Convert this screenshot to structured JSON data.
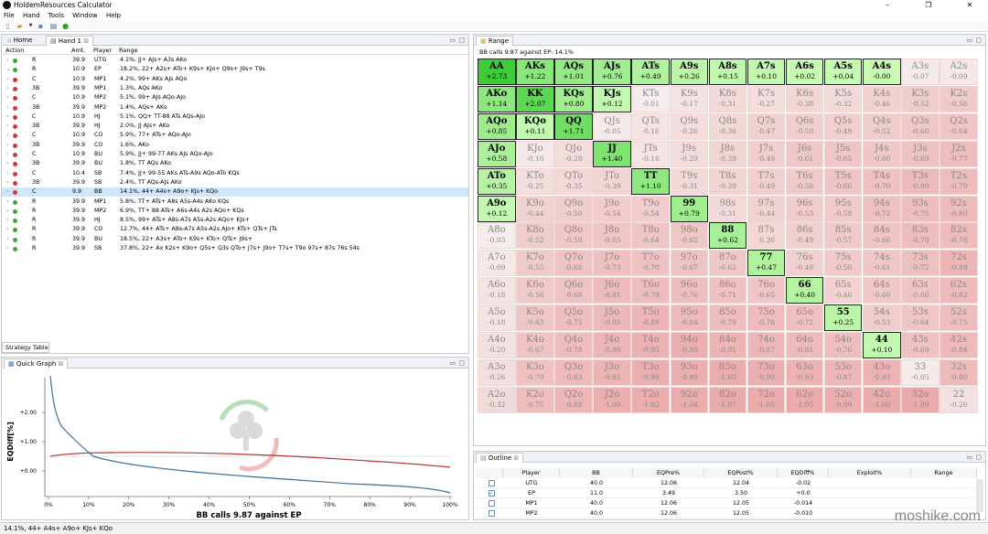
{
  "title": "HoldemResources Calculator",
  "menu": [
    "File",
    "Hand",
    "Tools",
    "Window",
    "Help"
  ],
  "tabs": {
    "home": "Home",
    "hand": "Hand 1"
  },
  "action_headers": {
    "action": "Action",
    "amt": "Amt.",
    "player": "Player",
    "range": "Range"
  },
  "actions": [
    {
      "dot": "g",
      "act": "R",
      "amt": "39.9",
      "player": "UTG",
      "range": "4.1%, JJ+ AJs+ A3s AKo"
    },
    {
      "dot": "g",
      "act": "R",
      "amt": "10.9",
      "player": "EP",
      "range": "18.2%, 22+ A2s+ ATo+ K9s+ KJo+ Q9s+ J9s+ T9s",
      "open": true
    },
    {
      "dot": "r",
      "act": "C",
      "amt": "10.9",
      "player": "MP1",
      "range": "4.2%, 99+ AKs AJs AQo"
    },
    {
      "dot": "r",
      "act": "3B",
      "amt": "39.9",
      "player": "MP1",
      "range": "1.3%, AQs AKo"
    },
    {
      "dot": "r",
      "act": "C",
      "amt": "10.9",
      "player": "MP2",
      "range": "5.1%, 99+ AJs AQo-AJo"
    },
    {
      "dot": "r",
      "act": "3B",
      "amt": "39.9",
      "player": "MP2",
      "range": "1.4%, AQs+ AKo"
    },
    {
      "dot": "r",
      "act": "C",
      "amt": "10.9",
      "player": "HJ",
      "range": "5.1%, QQ+ TT-88 ATs AQs-AJo"
    },
    {
      "dot": "r",
      "act": "3B",
      "amt": "39.9",
      "player": "HJ",
      "range": "2.0%, JJ AJs+ AKo"
    },
    {
      "dot": "r",
      "act": "C",
      "amt": "10.9",
      "player": "CO",
      "range": "5.9%, 77+ ATs+ AQo-AJo"
    },
    {
      "dot": "r",
      "act": "3B",
      "amt": "39.9",
      "player": "CO",
      "range": "1.6%, AKo"
    },
    {
      "dot": "r",
      "act": "C",
      "amt": "10.9",
      "player": "BU",
      "range": "5.9%, JJ+ 99-77 AKs AJs AQo-AJo"
    },
    {
      "dot": "r",
      "act": "3B",
      "amt": "39.9",
      "player": "BU",
      "range": "1.8%, TT AQs AKo"
    },
    {
      "dot": "r",
      "act": "C",
      "amt": "10.4",
      "player": "SB",
      "range": "7.4%, JJ+ 99-55 AKs ATs-A9s AQo-ATo KQs"
    },
    {
      "dot": "r",
      "act": "3B",
      "amt": "39.9",
      "player": "SB",
      "range": "2.4%, TT AQs-AJs AKo"
    },
    {
      "dot": "r",
      "act": "C",
      "amt": "9.9",
      "player": "BB",
      "range": "14.1%, 44+ A4s+ A9o+ KJs+ KQo",
      "sel": true
    },
    {
      "dot": "g",
      "act": "R",
      "amt": "39.9",
      "player": "MP1",
      "range": "5.8%, TT+ ATs+ A8s A5s-A4s AKo KQs"
    },
    {
      "dot": "g",
      "act": "R",
      "amt": "39.9",
      "player": "MP2",
      "range": "6.9%, TT+ 88 ATs+ A6s-A4s A2s AQo+ KQs"
    },
    {
      "dot": "g",
      "act": "R",
      "amt": "39.9",
      "player": "HJ",
      "range": "8.5%, 99+ ATs+ A8s-A7s A5s-A2s AQo+ KJs+"
    },
    {
      "dot": "g",
      "act": "R",
      "amt": "39.9",
      "player": "CO",
      "range": "12.7%, 44+ ATs+ A8s-A7s A5s-A2s AJo+ KTs+ QTs+ JTs"
    },
    {
      "dot": "g",
      "act": "R",
      "amt": "39.9",
      "player": "BU",
      "range": "18.5%, 22+ A3s+ ATo+ K9s+ KTo+ QTs+ J9s+"
    },
    {
      "dot": "g",
      "act": "R",
      "amt": "39.9",
      "player": "SB",
      "range": "37.8%, 22+ Ax K2s+ K9o+ Q5s+ Q3s QTo+ J7s+ J9o+ T7s+ T9o 97s+ 87s 76s 54s"
    }
  ],
  "strategy_tab": "Strategy Table",
  "quick_graph": {
    "tab": "Quick Graph",
    "ylabel": "EQDiff[%]",
    "title": "BB calls 9.87 against EP",
    "yticks": [
      "+2.00",
      "+1.00",
      "+0.00",
      "-1.00"
    ],
    "xticks": [
      "0%",
      "10%",
      "20%",
      "30%",
      "40%",
      "50%",
      "60%",
      "70%",
      "80%",
      "90%",
      "100%"
    ]
  },
  "range_panel": {
    "tab": "Range",
    "info": "BB calls 9.87 against EP: 14.1%"
  },
  "grid": [
    [
      [
        "AA",
        "+2.73"
      ],
      [
        "AKs",
        "+1.22"
      ],
      [
        "AQs",
        "+1.01"
      ],
      [
        "AJs",
        "+0.76"
      ],
      [
        "ATs",
        "+0.49"
      ],
      [
        "A9s",
        "+0.26"
      ],
      [
        "A8s",
        "+0.15"
      ],
      [
        "A7s",
        "+0.10"
      ],
      [
        "A6s",
        "+0.02"
      ],
      [
        "A5s",
        "+0.04"
      ],
      [
        "A4s",
        "-0.00"
      ],
      [
        "A3s",
        "-0.07"
      ],
      [
        "A2s",
        "-0.09"
      ]
    ],
    [
      [
        "AKo",
        "+1.14"
      ],
      [
        "KK",
        "+2.07"
      ],
      [
        "KQs",
        "+0.80"
      ],
      [
        "KJs",
        "+0.12"
      ],
      [
        "KTs",
        "-0.01"
      ],
      [
        "K9s",
        "-0.17"
      ],
      [
        "K8s",
        "-0.31"
      ],
      [
        "K7s",
        "-0.27"
      ],
      [
        "K6s",
        "-0.38"
      ],
      [
        "K5s",
        "-0.32"
      ],
      [
        "K4s",
        "-0.46"
      ],
      [
        "K3s",
        "-0.52"
      ],
      [
        "K2s",
        "-0.56"
      ]
    ],
    [
      [
        "AQo",
        "+0.85"
      ],
      [
        "KQo",
        "+0.11"
      ],
      [
        "QQ",
        "+1.71"
      ],
      [
        "QJs",
        "-0.05"
      ],
      [
        "QTs",
        "-0.16"
      ],
      [
        "Q9s",
        "-0.26"
      ],
      [
        "Q8s",
        "-0.36"
      ],
      [
        "Q7s",
        "-0.47"
      ],
      [
        "Q6s",
        "-0.50"
      ],
      [
        "Q5s",
        "-0.49"
      ],
      [
        "Q4s",
        "-0.52"
      ],
      [
        "Q3s",
        "-0.60"
      ],
      [
        "Q2s",
        "-0.64"
      ]
    ],
    [
      [
        "AJo",
        "+0.58"
      ],
      [
        "KJo",
        "-0.10"
      ],
      [
        "QJo",
        "-0.28"
      ],
      [
        "JJ",
        "+1.40"
      ],
      [
        "JTs",
        "-0.16"
      ],
      [
        "J9s",
        "-0.29"
      ],
      [
        "J8s",
        "-0.39"
      ],
      [
        "J7s",
        "-0.49"
      ],
      [
        "J6s",
        "-0.61"
      ],
      [
        "J5s",
        "-0.65"
      ],
      [
        "J4s",
        "-0.60"
      ],
      [
        "J3s",
        "-0.69"
      ],
      [
        "J2s",
        "-0.77"
      ]
    ],
    [
      [
        "ATo",
        "+0.35"
      ],
      [
        "KTo",
        "-0.25"
      ],
      [
        "QTo",
        "-0.35"
      ],
      [
        "JTo",
        "-0.39"
      ],
      [
        "TT",
        "+1.10"
      ],
      [
        "T9s",
        "-0.31"
      ],
      [
        "T8s",
        "-0.39"
      ],
      [
        "T7s",
        "-0.49"
      ],
      [
        "T6s",
        "-0.58"
      ],
      [
        "T5s",
        "-0.66"
      ],
      [
        "T4s",
        "-0.70"
      ],
      [
        "T3s",
        "-0.80"
      ],
      [
        "T2s",
        "-0.79"
      ]
    ],
    [
      [
        "A9o",
        "+0.12"
      ],
      [
        "K9o",
        "-0.44"
      ],
      [
        "Q9o",
        "-0.50"
      ],
      [
        "J9o",
        "-0.54"
      ],
      [
        "T9o",
        "-0.54"
      ],
      [
        "99",
        "+0.79"
      ],
      [
        "98s",
        "-0.31"
      ],
      [
        "97s",
        "-0.44"
      ],
      [
        "96s",
        "-0.53"
      ],
      [
        "95s",
        "-0.58"
      ],
      [
        "94s",
        "-0.72"
      ],
      [
        "93s",
        "-0.75"
      ],
      [
        "92s",
        "-0.80"
      ]
    ],
    [
      [
        "A8o",
        "-0.03"
      ],
      [
        "K8o",
        "-0.52"
      ],
      [
        "Q8o",
        "-0.59"
      ],
      [
        "J8o",
        "-0.65"
      ],
      [
        "T8o",
        "-0.64"
      ],
      [
        "98o",
        "-0.62"
      ],
      [
        "88",
        "+0.62"
      ],
      [
        "87s",
        "-0.36"
      ],
      [
        "86s",
        "-0.49"
      ],
      [
        "85s",
        "-0.57"
      ],
      [
        "84s",
        "-0.66"
      ],
      [
        "83s",
        "-0.78"
      ],
      [
        "82s",
        "-0.78"
      ]
    ],
    [
      [
        "A7o",
        "-0.09"
      ],
      [
        "K7o",
        "-0.55"
      ],
      [
        "Q7o",
        "-0.68"
      ],
      [
        "J7o",
        "-0.73"
      ],
      [
        "T7o",
        "-0.70"
      ],
      [
        "97o",
        "-0.67"
      ],
      [
        "87o",
        "-0.62"
      ],
      [
        "77",
        "+0.47"
      ],
      [
        "76s",
        "-0.49"
      ],
      [
        "75s",
        "-0.56"
      ],
      [
        "74s",
        "-0.61"
      ],
      [
        "73s",
        "-0.72"
      ],
      [
        "72s",
        "-0.88"
      ]
    ],
    [
      [
        "A6o",
        "-0.18"
      ],
      [
        "K6o",
        "-0.56"
      ],
      [
        "Q6o",
        "-0.68"
      ],
      [
        "J6o",
        "-0.81"
      ],
      [
        "T6o",
        "-0.79"
      ],
      [
        "96o",
        "-0.76"
      ],
      [
        "86o",
        "-0.71"
      ],
      [
        "76o",
        "-0.65"
      ],
      [
        "66",
        "+0.40"
      ],
      [
        "65s",
        "-0.46"
      ],
      [
        "64s",
        "-0.60"
      ],
      [
        "63s",
        "-0.66"
      ],
      [
        "62s",
        "-0.82"
      ]
    ],
    [
      [
        "A5o",
        "-0.18"
      ],
      [
        "K5o",
        "-0.63"
      ],
      [
        "Q5o",
        "-0.75"
      ],
      [
        "J5o",
        "-0.85"
      ],
      [
        "T5o",
        "-0.89"
      ],
      [
        "95o",
        "-0.84"
      ],
      [
        "85o",
        "-0.79"
      ],
      [
        "75o",
        "-0.78"
      ],
      [
        "65o",
        "-0.72"
      ],
      [
        "55",
        "+0.25"
      ],
      [
        "54s",
        "-0.53"
      ],
      [
        "53s",
        "-0.64"
      ],
      [
        "52s",
        "-0.75"
      ]
    ],
    [
      [
        "A4o",
        "-0.20"
      ],
      [
        "K4o",
        "-0.67"
      ],
      [
        "Q4o",
        "-0.78"
      ],
      [
        "J4o",
        "-0.90"
      ],
      [
        "T4o",
        "-0.95"
      ],
      [
        "94o",
        "-0.99"
      ],
      [
        "84o",
        "-0.91"
      ],
      [
        "74o",
        "-0.87"
      ],
      [
        "64o",
        "-0.81"
      ],
      [
        "54o",
        "-0.76"
      ],
      [
        "44",
        "+0.10"
      ],
      [
        "43s",
        "-0.69"
      ],
      [
        "42s",
        "-0.84"
      ]
    ],
    [
      [
        "A3o",
        "-0.26"
      ],
      [
        "K3o",
        "-0.70"
      ],
      [
        "Q3o",
        "-0.83"
      ],
      [
        "J3o",
        "-0.91"
      ],
      [
        "T3o",
        "-0.99"
      ],
      [
        "93o",
        "-0.99"
      ],
      [
        "83o",
        "-1.03"
      ],
      [
        "73o",
        "-0.99"
      ],
      [
        "63o",
        "-0.93"
      ],
      [
        "53o",
        "-0.87"
      ],
      [
        "43o",
        "-0.93"
      ],
      [
        "33",
        "-0.05"
      ],
      [
        "32s",
        "-0.80"
      ]
    ],
    [
      [
        "A2o",
        "-0.32"
      ],
      [
        "K2o",
        "-0.75"
      ],
      [
        "Q2o",
        "-0.88"
      ],
      [
        "J2o",
        "-1.00"
      ],
      [
        "T2o",
        "-1.02"
      ],
      [
        "92o",
        "-1.04"
      ],
      [
        "82o",
        "-1.07"
      ],
      [
        "72o",
        "-1.05"
      ],
      [
        "62o",
        "-1.05"
      ],
      [
        "52o",
        "-0.99"
      ],
      [
        "42o",
        "-1.06"
      ],
      [
        "32o",
        "-1.09"
      ],
      [
        "22",
        "-0.20"
      ]
    ]
  ],
  "outline": {
    "tab": "Outline",
    "headers": [
      "Player",
      "BB",
      "EQPre%",
      "EQPost%",
      "EQDiff%",
      "Exploit%",
      "Range"
    ],
    "rows": [
      {
        "checked": false,
        "player": "UTG",
        "bb": "40.0",
        "pre": "12.06",
        "post": "12.04",
        "diff": "-0.02"
      },
      {
        "checked": true,
        "player": "EP",
        "bb": "11.0",
        "pre": "3.49",
        "post": "3.50",
        "diff": "+0.0"
      },
      {
        "checked": false,
        "player": "MP1",
        "bb": "40.0",
        "pre": "12.06",
        "post": "12.05",
        "diff": "-0.014"
      },
      {
        "checked": false,
        "player": "MP2",
        "bb": "40.0",
        "pre": "12.06",
        "post": "12.05",
        "diff": "-0.010"
      }
    ]
  },
  "status": "14.1%, 44+ A4s+ A9o+ KJs+ KQo",
  "watermark": "moshike.com",
  "colors": {
    "green_strong": "#5ee05e",
    "green_light": "#d8f5d0",
    "red_base": "#f3c3c3"
  }
}
